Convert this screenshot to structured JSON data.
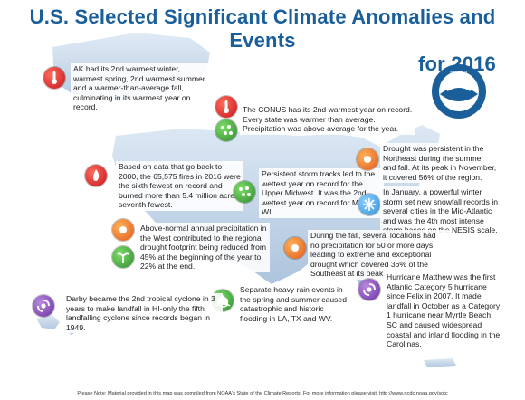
{
  "title": {
    "line1": "U.S. Selected Significant Climate Anomalies and Events",
    "line2": "for 2016"
  },
  "logo_text": "NOAA",
  "annotations": {
    "alaska": "AK had its 2nd warmest winter, warmest spring, 2nd warmest summer and a warmer-than-average fall, culminating in its warmest year on record.",
    "conus": "The CONUS has its 2nd warmest year on record. Every state was warmer than average. Precipitation was above average for the year.",
    "fires": "Based on data that go back to 2000, the 65,575 fires in 2016 were the sixth fewest on record and burned more than 5.4 million acres, seventh fewest.",
    "midwest": "Persistent storm tracks led to the wettest year on record for the Upper Midwest. It was the 2nd wettest year on record for MN and WI.",
    "northeast_drought": "Drought was persistent in the Northeast during the summer and fall. At its peak in November, it covered 56% of the region.",
    "snowstorm": "In January, a powerful winter storm set new snowfall records in several cities in the Mid-Atlantic and was the 4th most intense storm based on the NESIS scale.",
    "west_precip": "Above-normal annual precipitation in the West contributed to the regional drought footprint being reduced from 45% at the beginning of the year to 22% at the end.",
    "southeast_drought": "During the fall, several locations had no precipitation for 50 or more days, leading to extreme and exceptional drought which covered 36% of the Southeast at its peak.",
    "flooding": "Separate heavy rain events in the spring and summer caused catastrophic and historic flooding in LA, TX and WV.",
    "matthew": "Hurricane Matthew was the first Atlantic Category 5 hurricane since Felix in 2007. It made landfall in October as a Category 1 hurricane near Myrtle Beach, SC and caused widespread coastal and inland flooding in the Carolinas.",
    "darby": "Darby became the 2nd tropical cyclone in 3 years to make landfall in HI-only the fifth landfalling cyclone since records began in 1949."
  },
  "icons": {
    "alaska": {
      "name": "thermometer-icon",
      "color": "#c4161c"
    },
    "conus_temp": {
      "name": "thermometer-icon",
      "color": "#c4161c"
    },
    "conus_precip": {
      "name": "raindrops-icon",
      "color": "#2e8b2e"
    },
    "fires": {
      "name": "fire-icon",
      "color": "#c4161c"
    },
    "midwest": {
      "name": "raindrops-icon",
      "color": "#2e8b2e"
    },
    "northeast_drought": {
      "name": "sun-drought-icon",
      "color": "#e0581a"
    },
    "snowstorm": {
      "name": "snowflake-icon",
      "color": "#2f8fd6"
    },
    "west_precip": {
      "name": "sun-drought-icon",
      "color": "#e0581a"
    },
    "west_drought": {
      "name": "drought-improvement-icon",
      "color": "#2e8b2e"
    },
    "southeast_drought": {
      "name": "sun-drought-icon",
      "color": "#e0581a"
    },
    "flooding": {
      "name": "flood-icon",
      "color": "#2e8b2e"
    },
    "matthew": {
      "name": "hurricane-icon",
      "color": "#6a2fa0"
    },
    "darby": {
      "name": "hurricane-icon",
      "color": "#6a2fa0"
    }
  },
  "footer": "Please Note: Material provided in this map was compiled from NOAA's State of the Climate Reports. For more information please visit: http://www.ncdc.noaa.gov/sotc"
}
